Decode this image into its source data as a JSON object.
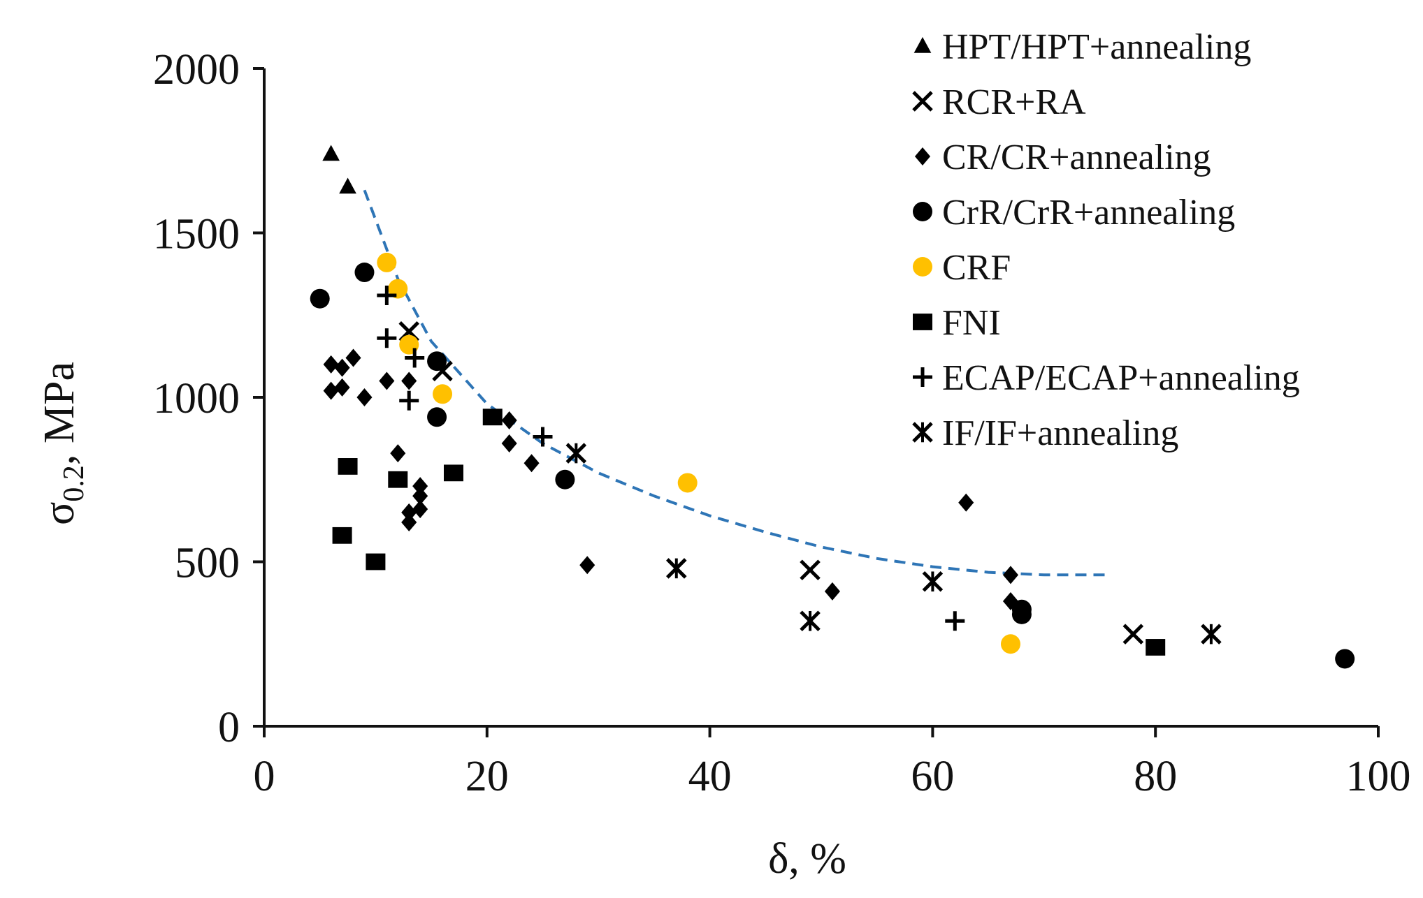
{
  "chart_data": {
    "type": "scatter",
    "title": "",
    "xlabel": "δ, %",
    "ylabel": "σ0.2, MPa",
    "ylabel_main": "σ",
    "ylabel_sub": "0.2",
    "ylabel_rest": ", MPa",
    "xlim": [
      0,
      100
    ],
    "ylim": [
      0,
      2000
    ],
    "x_ticks": [
      "0",
      "20",
      "40",
      "60",
      "80",
      "100"
    ],
    "y_ticks": [
      "0",
      "500",
      "1000",
      "1500",
      "2000"
    ],
    "grid": false,
    "legend_position": "top-right",
    "series": [
      {
        "name": "HPT/HPT+annealing",
        "marker": "triangle",
        "color": "#000000",
        "points": [
          [
            6,
            1740
          ],
          [
            7.5,
            1640
          ]
        ]
      },
      {
        "name": "RCR+RA",
        "marker": "x",
        "color": "#000000",
        "points": [
          [
            13,
            1200
          ],
          [
            16,
            1080
          ],
          [
            49,
            475
          ],
          [
            78,
            280
          ]
        ]
      },
      {
        "name": "CR/CR+annealing",
        "marker": "diamond",
        "color": "#000000",
        "points": [
          [
            6,
            1100
          ],
          [
            7,
            1090
          ],
          [
            8,
            1120
          ],
          [
            6,
            1020
          ],
          [
            7,
            1030
          ],
          [
            9,
            1000
          ],
          [
            11,
            1050
          ],
          [
            13,
            1050
          ],
          [
            12,
            830
          ],
          [
            14,
            730
          ],
          [
            14,
            700
          ],
          [
            13,
            650
          ],
          [
            14,
            660
          ],
          [
            13,
            620
          ],
          [
            22,
            930
          ],
          [
            22,
            860
          ],
          [
            24,
            800
          ],
          [
            29,
            490
          ],
          [
            51,
            410
          ],
          [
            63,
            680
          ],
          [
            67,
            460
          ],
          [
            67,
            380
          ]
        ]
      },
      {
        "name": "CrR/CrR+annealing",
        "marker": "circle",
        "color": "#000000",
        "points": [
          [
            5,
            1300
          ],
          [
            9,
            1380
          ],
          [
            15.5,
            940
          ],
          [
            15.5,
            1110
          ],
          [
            27,
            750
          ],
          [
            68,
            340
          ],
          [
            68,
            355
          ],
          [
            97,
            205
          ]
        ]
      },
      {
        "name": "CRF",
        "marker": "circle",
        "color": "#FFC000",
        "points": [
          [
            11,
            1410
          ],
          [
            12,
            1330
          ],
          [
            13,
            1160
          ],
          [
            16,
            1010
          ],
          [
            38,
            740
          ],
          [
            67,
            250
          ]
        ]
      },
      {
        "name": "FNI",
        "marker": "square",
        "color": "#000000",
        "points": [
          [
            7.5,
            790
          ],
          [
            7,
            580
          ],
          [
            10,
            500
          ],
          [
            12,
            750
          ],
          [
            17,
            770
          ],
          [
            20.5,
            940
          ],
          [
            80,
            240
          ]
        ]
      },
      {
        "name": "ECAP/ECAP+annealing",
        "marker": "plus",
        "color": "#000000",
        "points": [
          [
            11,
            1310
          ],
          [
            11,
            1180
          ],
          [
            13,
            990
          ],
          [
            13.5,
            1120
          ],
          [
            25,
            880
          ],
          [
            62,
            320
          ]
        ]
      },
      {
        "name": "IF/IF+annealing",
        "marker": "star",
        "color": "#000000",
        "points": [
          [
            28,
            830
          ],
          [
            37,
            480
          ],
          [
            49,
            320
          ],
          [
            60,
            440
          ],
          [
            85,
            280
          ]
        ]
      }
    ],
    "trendline": {
      "style": "dashed",
      "color": "#2E75B6",
      "points": [
        [
          9,
          1630
        ],
        [
          12,
          1360
        ],
        [
          15,
          1170
        ],
        [
          20,
          980
        ],
        [
          25,
          860
        ],
        [
          30,
          770
        ],
        [
          35,
          700
        ],
        [
          40,
          640
        ],
        [
          45,
          590
        ],
        [
          50,
          545
        ],
        [
          55,
          510
        ],
        [
          60,
          485
        ],
        [
          65,
          468
        ],
        [
          70,
          460
        ],
        [
          76,
          460
        ]
      ]
    }
  }
}
